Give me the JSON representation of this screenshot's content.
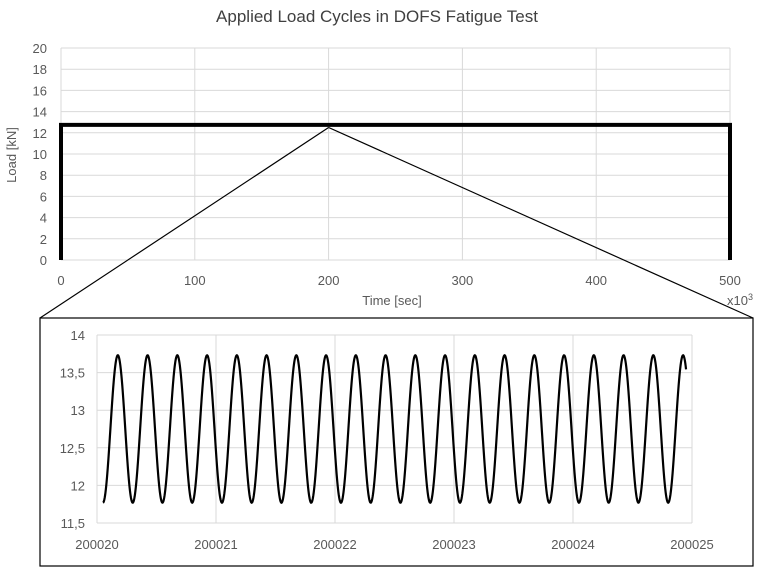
{
  "chart_data": [
    {
      "type": "line",
      "title": "Applied Load Cycles in DOFS Fatigue Test",
      "xlabel": "Time [sec]",
      "x_multiplier": "x10",
      "x_multiplier_exp": "3",
      "ylabel": "Load [kN]",
      "xlim": [
        0,
        500
      ],
      "ylim": [
        0,
        20
      ],
      "x_ticks": [
        "0",
        "100",
        "200",
        "300",
        "400",
        "500"
      ],
      "y_ticks": [
        "0",
        "2",
        "4",
        "6",
        "8",
        "10",
        "12",
        "14",
        "16",
        "18",
        "20"
      ],
      "grid": true,
      "series": [
        {
          "x": [
            0,
            0,
            500,
            500
          ],
          "y": [
            0,
            12.75,
            12.75,
            0
          ]
        }
      ],
      "zoom_point": {
        "x": 200,
        "y": 12.5
      }
    },
    {
      "type": "line",
      "xlim": [
        200020,
        200025
      ],
      "ylim": [
        11.5,
        14
      ],
      "x_ticks": [
        "200020",
        "200021",
        "200022",
        "200023",
        "200024",
        "200025"
      ],
      "y_ticks": [
        "11,5",
        "12",
        "12,5",
        "13",
        "13,5",
        "14"
      ],
      "grid": true,
      "series": [
        {
          "function": "sine",
          "mean": 12.75,
          "amplitude": 0.98,
          "frequency_hz": 4,
          "x_start": 200020.05,
          "x_end": 200024.95,
          "phase": "starts at minimum"
        }
      ]
    }
  ],
  "colors": {
    "line": "#000000",
    "grid": "#d9d9d9",
    "text": "#595959",
    "title": "#404040"
  }
}
